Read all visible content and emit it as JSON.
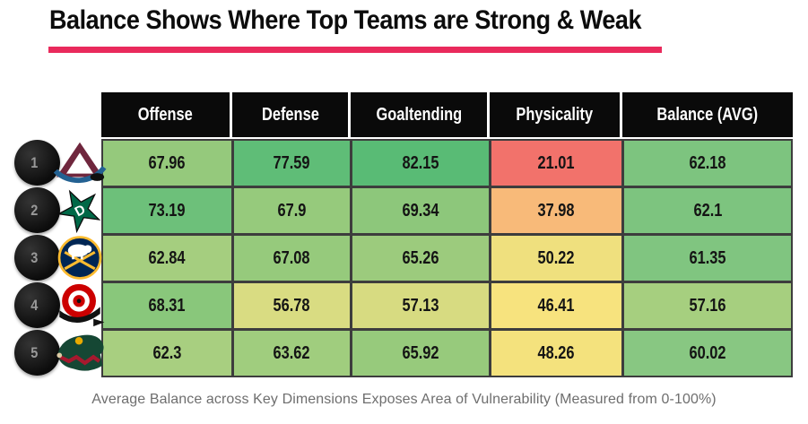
{
  "title": "Balance Shows Where Top Teams are Strong & Weak",
  "title_underline_color": "#E92A5C",
  "caption": "Average Balance across Key Dimensions Exposes Area of Vulnerability (Measured from 0-100%)",
  "table": {
    "columns": [
      "Offense",
      "Defense",
      "Goaltending",
      "Physicality",
      "Balance (AVG)"
    ],
    "rows": [
      {
        "rank": "1",
        "team": "Colorado Avalanche",
        "logo": "colorado-avalanche-logo",
        "cells": [
          {
            "value": "67.96",
            "color": "#95C97C"
          },
          {
            "value": "77.59",
            "color": "#5FBD77"
          },
          {
            "value": "82.15",
            "color": "#59BB75"
          },
          {
            "value": "21.01",
            "color": "#F2726B"
          },
          {
            "value": "62.18",
            "color": "#7DC47F"
          }
        ]
      },
      {
        "rank": "2",
        "team": "Dallas Stars",
        "logo": "dallas-stars-logo",
        "cells": [
          {
            "value": "73.19",
            "color": "#6DC07A"
          },
          {
            "value": "67.9",
            "color": "#96CA7C"
          },
          {
            "value": "69.34",
            "color": "#8DC77B"
          },
          {
            "value": "37.98",
            "color": "#F8BA79"
          },
          {
            "value": "62.1",
            "color": "#7DC47F"
          }
        ]
      },
      {
        "rank": "3",
        "team": "Buffalo Sabres",
        "logo": "buffalo-sabres-logo",
        "cells": [
          {
            "value": "62.84",
            "color": "#A5CE7F"
          },
          {
            "value": "67.08",
            "color": "#96CA7C"
          },
          {
            "value": "65.26",
            "color": "#9CCB7D"
          },
          {
            "value": "50.22",
            "color": "#EFE07E"
          },
          {
            "value": "61.35",
            "color": "#80C580"
          }
        ]
      },
      {
        "rank": "4",
        "team": "Carolina Hurricanes",
        "logo": "carolina-hurricanes-logo",
        "cells": [
          {
            "value": "68.31",
            "color": "#89C77B"
          },
          {
            "value": "56.78",
            "color": "#D9DC82"
          },
          {
            "value": "57.13",
            "color": "#D7DB81"
          },
          {
            "value": "46.41",
            "color": "#F7E37E"
          },
          {
            "value": "57.16",
            "color": "#A6CF7F"
          }
        ]
      },
      {
        "rank": "5",
        "team": "Minnesota Wild",
        "logo": "minnesota-wild-logo",
        "cells": [
          {
            "value": "62.3",
            "color": "#A8CF80"
          },
          {
            "value": "63.62",
            "color": "#A0CD7E"
          },
          {
            "value": "65.92",
            "color": "#97CA7C"
          },
          {
            "value": "48.26",
            "color": "#F4E27D"
          },
          {
            "value": "60.02",
            "color": "#88C782"
          }
        ]
      }
    ]
  },
  "chart_data": {
    "type": "table",
    "title": "Balance Shows Where Top Teams are Strong & Weak",
    "columns": [
      "Offense",
      "Defense",
      "Goaltending",
      "Physicality",
      "Balance (AVG)"
    ],
    "rows": [
      {
        "rank": 1,
        "team": "Colorado Avalanche",
        "values": [
          67.96,
          77.59,
          82.15,
          21.01,
          62.18
        ]
      },
      {
        "rank": 2,
        "team": "Dallas Stars",
        "values": [
          73.19,
          67.9,
          69.34,
          37.98,
          62.1
        ]
      },
      {
        "rank": 3,
        "team": "Buffalo Sabres",
        "values": [
          62.84,
          67.08,
          65.26,
          50.22,
          61.35
        ]
      },
      {
        "rank": 4,
        "team": "Carolina Hurricanes",
        "values": [
          68.31,
          56.78,
          57.13,
          46.41,
          57.16
        ]
      },
      {
        "rank": 5,
        "team": "Minnesota Wild",
        "values": [
          62.3,
          63.62,
          65.92,
          48.26,
          60.02
        ]
      }
    ],
    "value_range": [
      0,
      100
    ],
    "color_scale": "red-yellow-green heatmap by value",
    "caption": "Average Balance across Key Dimensions Exposes Area of Vulnerability (Measured from 0-100%)"
  }
}
